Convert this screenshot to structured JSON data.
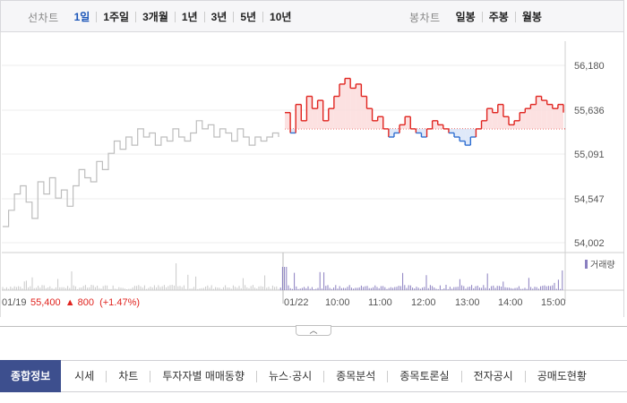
{
  "top_bar": {
    "period_label": "선차트",
    "periods": [
      "1일",
      "1주일",
      "3개월",
      "1년",
      "3년",
      "5년",
      "10년"
    ],
    "active_period": "1일",
    "candle_label": "봉차트",
    "candles": [
      "일봉",
      "주봉",
      "월봉"
    ]
  },
  "chart_data": {
    "type": "line",
    "price_axis": [
      "56,180",
      "55,636",
      "55,091",
      "54,547",
      "54,002"
    ],
    "ylim": [
      54002,
      56180
    ],
    "reference_price": 55400,
    "volume_label": "거래량",
    "time_ticks": [
      "01/19",
      "01/22",
      "10:00",
      "11:00",
      "12:00",
      "13:00",
      "14:00",
      "15:00"
    ],
    "prev_day_summary": {
      "date": "01/19",
      "price": "55,400",
      "arrow": "▲",
      "change": "800",
      "change_pct": "(+1.47%)"
    },
    "prev_series_approx": [
      54200,
      54400,
      54600,
      54700,
      54500,
      54300,
      54750,
      54600,
      54800,
      54550,
      54650,
      54450,
      54700,
      54900,
      54800,
      54750,
      55000,
      54900,
      55100,
      55250,
      55150,
      55300,
      55200,
      55400,
      55300,
      55350,
      55200,
      55300,
      55250,
      55400,
      55300,
      55250,
      55350,
      55500,
      55400,
      55450,
      55300,
      55400,
      55350,
      55250,
      55400,
      55300,
      55200,
      55300,
      55250,
      55300,
      55350,
      55300
    ],
    "today_series_approx": [
      55600,
      55350,
      55700,
      55500,
      55800,
      55650,
      55750,
      55500,
      55650,
      55800,
      55950,
      56020,
      55900,
      55950,
      55800,
      55650,
      55500,
      55550,
      55400,
      55300,
      55350,
      55450,
      55550,
      55400,
      55350,
      55300,
      55400,
      55500,
      55450,
      55400,
      55350,
      55300,
      55250,
      55200,
      55300,
      55400,
      55500,
      55650,
      55600,
      55700,
      55550,
      55450,
      55500,
      55600,
      55650,
      55700,
      55800,
      55750,
      55700,
      55650,
      55700,
      55600
    ]
  },
  "bottom_tabs": [
    "종합정보",
    "시세",
    "차트",
    "투자자별 매매동향",
    "뉴스·공시",
    "종목분석",
    "종목토론실",
    "전자공시",
    "공매도현황"
  ],
  "colors": {
    "up": "#e0241f",
    "down": "#2f6fd1",
    "prev_line": "#bdbdbd",
    "volume": "#8a7fc0",
    "active_tab_bg": "#3d4f8e",
    "active_period": "#1a55b8"
  }
}
